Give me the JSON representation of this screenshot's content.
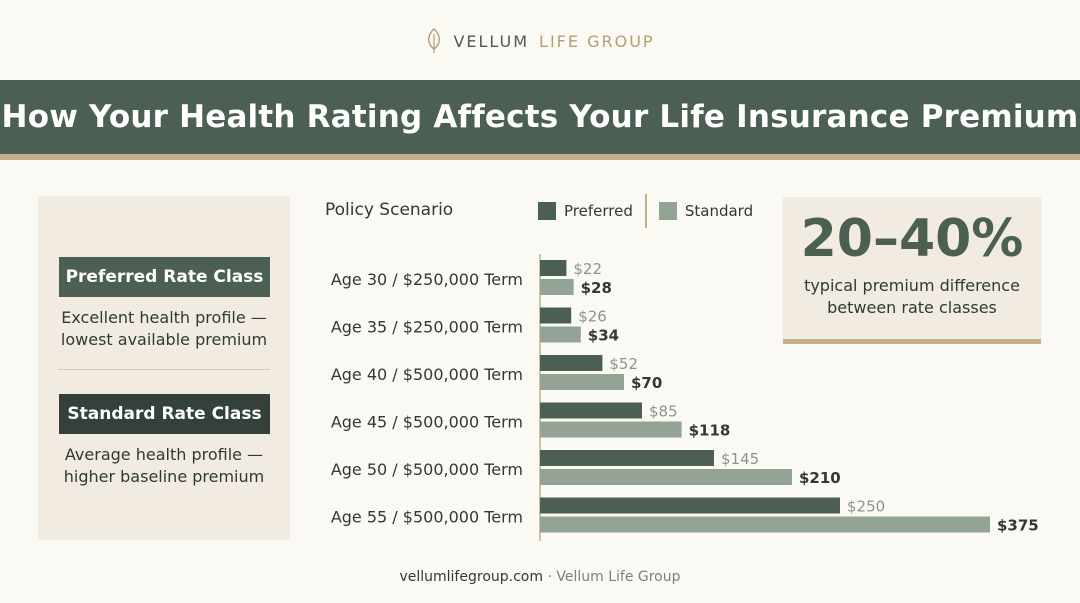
{
  "brand": {
    "name_part1": "VELLUM",
    "name_part2": "LIFE GROUP",
    "logo_icon": "leaf-icon"
  },
  "banner": {
    "title": "How Your Health Rating Affects Your Life Insurance Premium"
  },
  "rate_classes": [
    {
      "label": "Preferred Rate Class",
      "description_line1": "Excellent health profile —",
      "description_line2": "lowest available premium",
      "color": "#4b5f53"
    },
    {
      "label": "Standard Rate Class",
      "description_line1": "Average health profile —",
      "description_line2": "higher baseline premium",
      "color": "#35403a"
    }
  ],
  "callout": {
    "value": "20–40%",
    "text_line1": "typical premium difference",
    "text_line2": "between rate classes"
  },
  "footer": {
    "site": "vellumlifegroup.com",
    "separator": " · ",
    "company": "Vellum Life Group"
  },
  "colors": {
    "preferred": "#4b5f53",
    "standard": "#93a396",
    "accent": "#c6b08c"
  },
  "chart_data": {
    "type": "bar",
    "orientation": "horizontal",
    "title": "Policy Scenario",
    "categories": [
      "Age 30 / $250,000 Term",
      "Age 35 / $250,000 Term",
      "Age 40 / $500,000 Term",
      "Age 45 / $500,000 Term",
      "Age 50 / $500,000 Term",
      "Age 55 / $500,000 Term"
    ],
    "series": [
      {
        "name": "Preferred",
        "values": [
          22,
          26,
          52,
          85,
          145,
          250
        ],
        "labels": [
          "$22",
          "$26",
          "$52",
          "$85",
          "$145",
          "$250"
        ]
      },
      {
        "name": "Standard",
        "values": [
          28,
          34,
          70,
          118,
          210,
          375
        ],
        "labels": [
          "$28",
          "$34",
          "$70",
          "$118",
          "$210",
          "$375"
        ]
      }
    ],
    "xlim": [
      0,
      375
    ],
    "legend": "top",
    "grid": false
  }
}
